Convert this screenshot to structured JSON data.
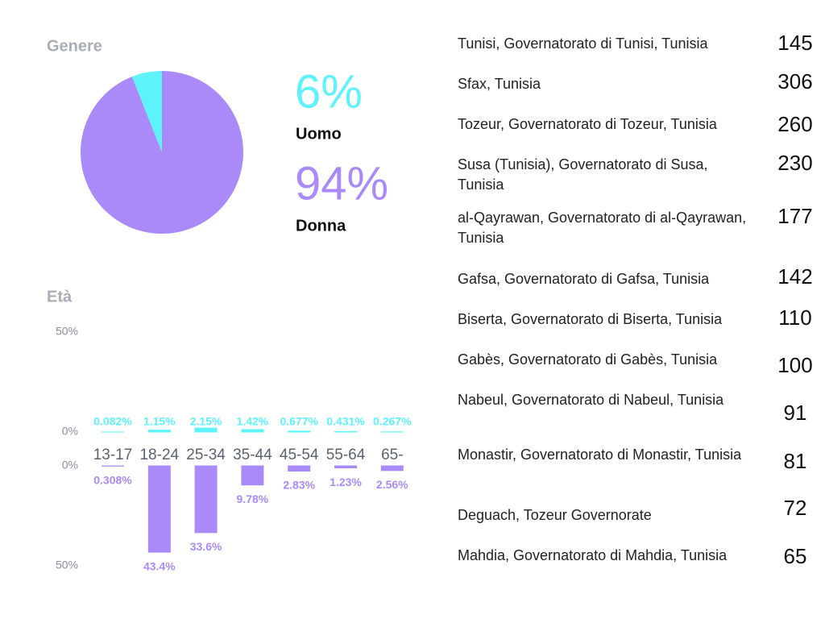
{
  "chart_data": [
    {
      "type": "pie",
      "title": "Genere",
      "categories": [
        "Uomo",
        "Donna"
      ],
      "values": [
        6,
        94
      ],
      "value_labels": [
        "6%",
        "94%"
      ],
      "colors": [
        "#5ef2fb",
        "#a98af8"
      ]
    },
    {
      "type": "mirrored-bar",
      "title": "Età",
      "categories": [
        "13-17",
        "18-24",
        "25-34",
        "35-44",
        "45-54",
        "55-64",
        "65-"
      ],
      "series": [
        {
          "color": "#5ef2fb",
          "values": [
            0.082,
            1.15,
            2.15,
            1.42,
            0.677,
            0.431,
            0.267
          ],
          "value_labels": [
            "0.082%",
            "1.15%",
            "2.15%",
            "1.42%",
            "0.677%",
            "0.431%",
            "0.267%"
          ]
        },
        {
          "color": "#a98af8",
          "axis": "y2",
          "values": [
            0.308,
            43.4,
            33.6,
            9.78,
            2.83,
            1.23,
            2.56
          ],
          "value_labels": [
            "0.308%",
            "43.4%",
            "33.6%",
            "9.78%",
            "2.83%",
            "1.23%",
            "2.56%"
          ]
        }
      ],
      "ylim": [
        0,
        50
      ],
      "yticks": [
        {
          "value": 0,
          "label": "0%"
        },
        {
          "value": 50,
          "label": "50%"
        }
      ],
      "y2lim": [
        0,
        50
      ],
      "y2ticks": [
        {
          "value": 0,
          "label": "0%"
        },
        {
          "value": 50,
          "label": "50%"
        }
      ],
      "y2_inverted": true
    }
  ],
  "locations": {
    "rows": [
      {
        "name": "Tunisi, Governatorato di Tunisi, Tunisia",
        "count": 145
      },
      {
        "name": "Sfax, Tunisia",
        "count": 306
      },
      {
        "name": "Tozeur, Governatorato di Tozeur, Tunisia",
        "count": 260
      },
      {
        "name": "Susa (Tunisia), Governatorato di Susa, Tunisia",
        "count": 230
      },
      {
        "name": "al-Qayrawan, Governatorato di al-Qayrawan, Tunisia",
        "count": 177
      },
      {
        "name": "Gafsa, Governatorato di Gafsa, Tunisia",
        "count": 142
      },
      {
        "name": "Biserta, Governatorato di Biserta, Tunisia",
        "count": 110
      },
      {
        "name": "Gabès, Governatorato di Gabès, Tunisia",
        "count": 100
      },
      {
        "name": "Nabeul, Governatorato di Nabeul, Tunisia",
        "count": 91
      },
      {
        "name": "Monastir, Governatorato di Monastir, Tunisia",
        "count": 81
      },
      {
        "name": "Deguach, Tozeur Governorate",
        "count": 72
      },
      {
        "name": "Mahdia, Governatorato di Mahdia, Tunisia",
        "count": 65
      }
    ]
  }
}
